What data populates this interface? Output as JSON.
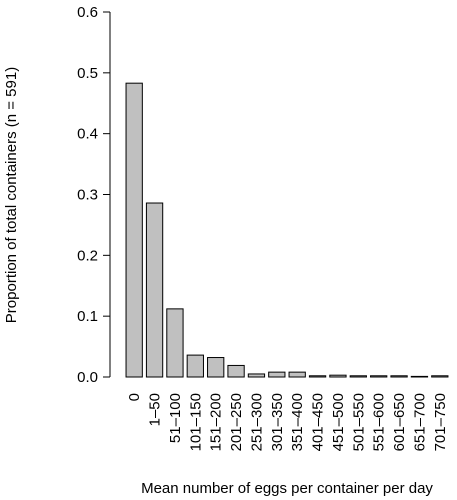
{
  "chart_data": {
    "type": "bar",
    "x_label": "Mean number of eggs per container per day",
    "y_label": "Proportion of total containers (n = 591)",
    "categories": [
      "0",
      "1–50",
      "51–100",
      "101–150",
      "151–200",
      "201–250",
      "251–300",
      "301–350",
      "351–400",
      "401–450",
      "451–500",
      "501–550",
      "551–600",
      "601–650",
      "651–700",
      "701–750"
    ],
    "values": [
      0.483,
      0.286,
      0.112,
      0.036,
      0.032,
      0.019,
      0.005,
      0.008,
      0.008,
      0.002,
      0.003,
      0.002,
      0.002,
      0.002,
      0.001,
      0.002
    ],
    "color": "#c0c0c0",
    "ylim": [
      0,
      0.6
    ],
    "yticks": [
      {
        "value": 0,
        "label": "0.0"
      },
      0.1,
      0.2,
      0.3,
      0.4,
      0.5,
      0.6
    ]
  }
}
